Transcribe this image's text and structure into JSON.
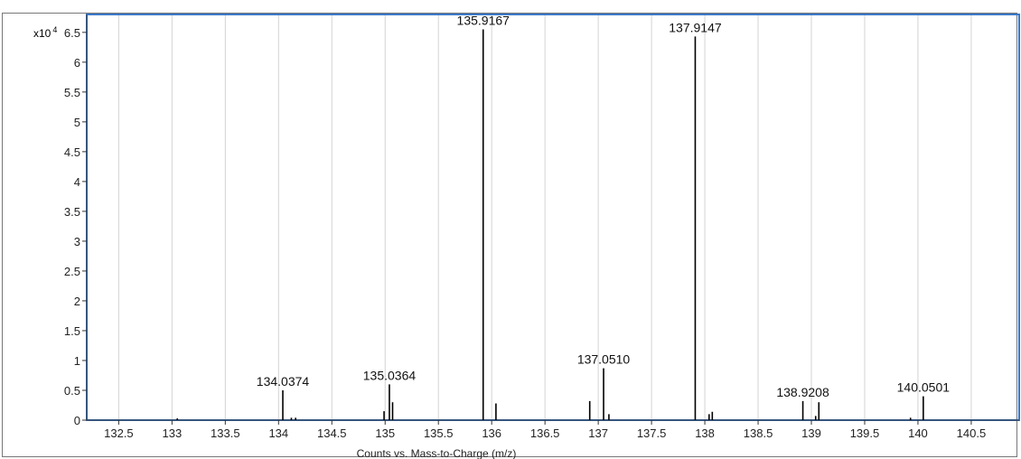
{
  "chart_data": {
    "type": "bar",
    "subtype": "mass-spectrum-stick",
    "xlabel": "Counts vs. Mass-to-Charge (m/z)",
    "ylabel": "",
    "y_multiplier_label": "x10",
    "y_multiplier_exponent": "4",
    "xlim": [
      132.2,
      140.95
    ],
    "ylim": [
      0,
      6.8
    ],
    "x_ticks": [
      132.5,
      133,
      133.5,
      134,
      134.5,
      135,
      135.5,
      136,
      136.5,
      137,
      137.5,
      138,
      138.5,
      139,
      139.5,
      140,
      140.5
    ],
    "x_tick_labels": [
      "132.5",
      "133",
      "133.5",
      "134",
      "134.5",
      "135",
      "135.5",
      "136",
      "136.5",
      "137",
      "137.5",
      "138",
      "138.5",
      "139",
      "139.5",
      "140",
      "140.5"
    ],
    "y_ticks": [
      0,
      0.5,
      1,
      1.5,
      2,
      2.5,
      3,
      3.5,
      4,
      4.5,
      5,
      5.5,
      6,
      6.5
    ],
    "y_tick_labels": [
      "0",
      "0.5",
      "1",
      "1.5",
      "2",
      "2.5",
      "3",
      "3.5",
      "4",
      "4.5",
      "5",
      "5.5",
      "6",
      "6.5"
    ],
    "grid": true,
    "legend": "none",
    "peaks": [
      {
        "mz": 133.05,
        "intensity": 0.03
      },
      {
        "mz": 134.04,
        "intensity": 0.5,
        "label": "134.0374"
      },
      {
        "mz": 134.12,
        "intensity": 0.04
      },
      {
        "mz": 134.16,
        "intensity": 0.04
      },
      {
        "mz": 134.99,
        "intensity": 0.15
      },
      {
        "mz": 135.04,
        "intensity": 0.6,
        "label": "135.0364"
      },
      {
        "mz": 135.07,
        "intensity": 0.3
      },
      {
        "mz": 135.92,
        "intensity": 6.55,
        "label": "135.9167"
      },
      {
        "mz": 136.04,
        "intensity": 0.28
      },
      {
        "mz": 136.92,
        "intensity": 0.32
      },
      {
        "mz": 137.05,
        "intensity": 0.87,
        "label": "137.0510"
      },
      {
        "mz": 137.1,
        "intensity": 0.1
      },
      {
        "mz": 137.91,
        "intensity": 6.43,
        "label": "137.9147"
      },
      {
        "mz": 138.04,
        "intensity": 0.1
      },
      {
        "mz": 138.07,
        "intensity": 0.14
      },
      {
        "mz": 138.92,
        "intensity": 0.32,
        "label": "138.9208"
      },
      {
        "mz": 139.04,
        "intensity": 0.07
      },
      {
        "mz": 139.07,
        "intensity": 0.3
      },
      {
        "mz": 139.93,
        "intensity": 0.04
      },
      {
        "mz": 140.05,
        "intensity": 0.4,
        "label": "140.0501"
      }
    ]
  },
  "colors": {
    "plot_border": "#3b78c8",
    "grid": "#d3d3d3",
    "axis": "#333333",
    "stick": "#000000"
  }
}
